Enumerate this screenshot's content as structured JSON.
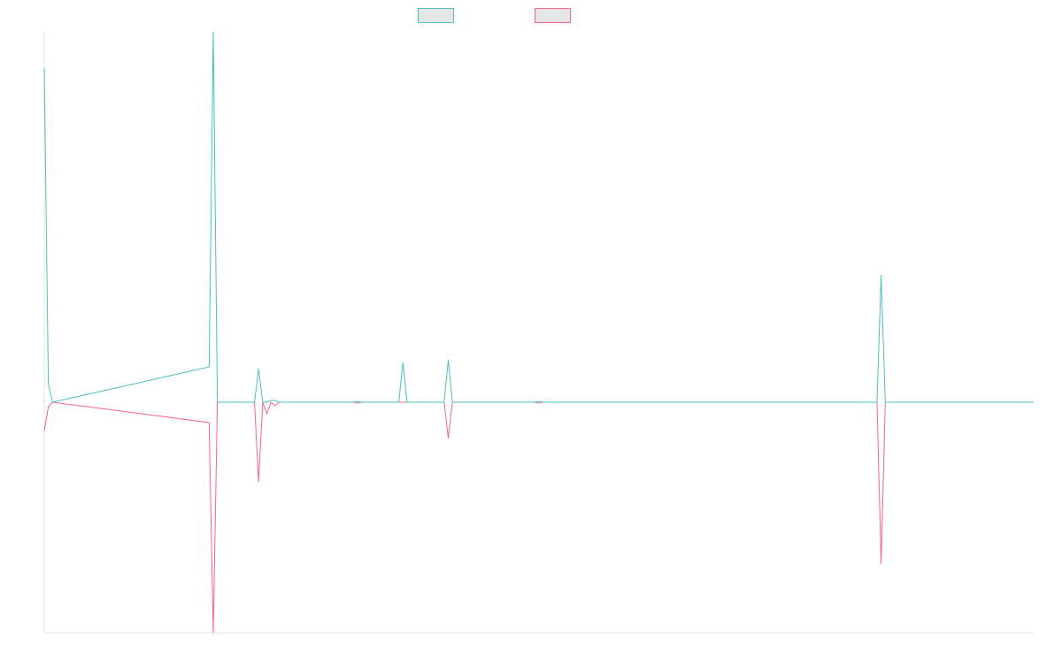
{
  "chart_data": {
    "type": "line",
    "x": [
      0,
      1,
      2,
      40,
      41,
      42,
      51,
      52,
      53,
      54,
      55,
      56,
      57,
      75,
      76,
      77,
      86,
      87,
      88,
      97,
      98,
      99,
      119,
      120,
      121,
      202,
      203,
      204,
      240
    ],
    "series": [
      {
        "color": "#ff6384",
        "values": [
          -33,
          -5,
          0,
          -23,
          -261,
          0,
          0,
          -90,
          0,
          -13,
          0,
          -4,
          0,
          0,
          -1,
          0,
          0,
          0,
          0,
          0,
          -41,
          0,
          0,
          -1,
          0,
          0,
          -183,
          0,
          0
        ]
      },
      {
        "color": "#4bc0c0",
        "values": [
          378,
          20,
          0,
          40,
          419,
          0,
          0,
          38,
          0,
          0,
          2,
          2,
          0,
          0,
          1,
          0,
          0,
          45,
          0,
          0,
          48,
          0,
          0,
          1,
          0,
          0,
          144,
          0,
          0
        ]
      }
    ],
    "legend_order": [
      1,
      0
    ],
    "xlim": [
      0,
      240
    ],
    "ylim": [
      -261,
      419
    ]
  }
}
